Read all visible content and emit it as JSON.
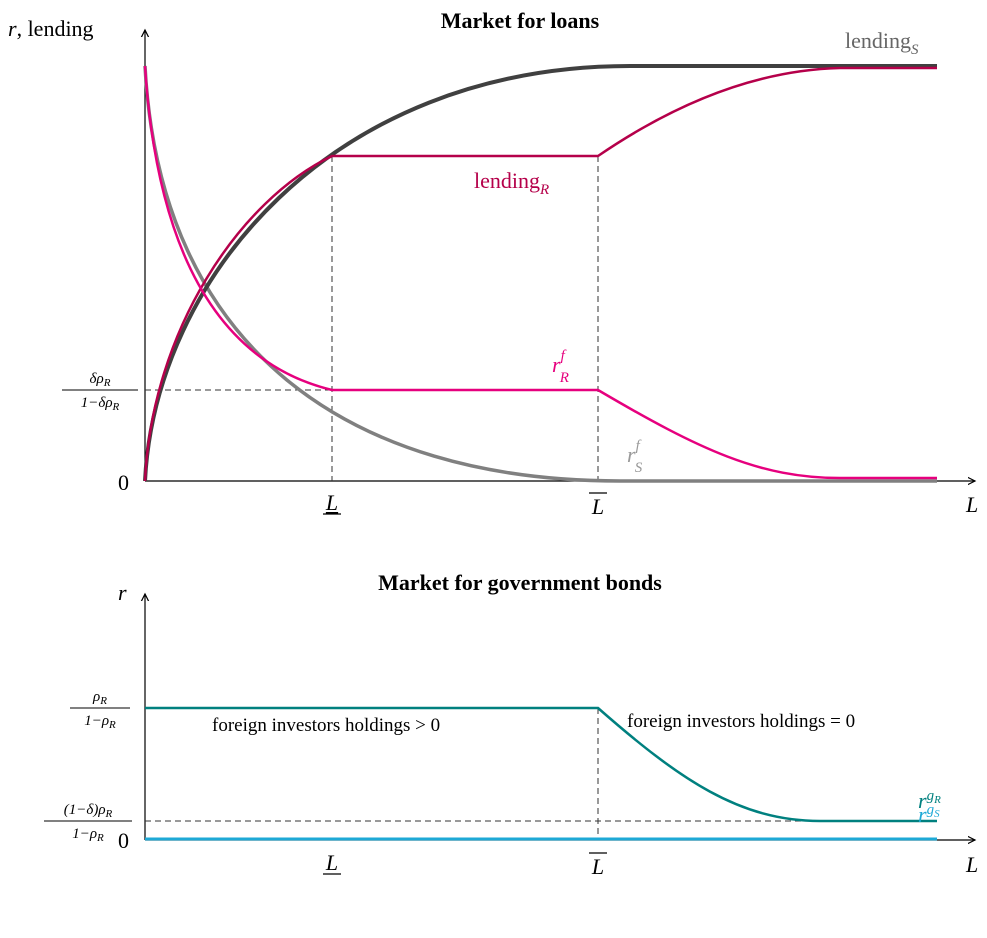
{
  "top": {
    "title": "Market for loans",
    "y_axis_label": {
      "var": "r",
      "rest": ", lending"
    },
    "x_axis_label": "L",
    "y_zero": "0",
    "y_tick": {
      "numerator": "δρ",
      "numerator_sub": "R",
      "denominator": "1−δρ",
      "denominator_sub": "R"
    },
    "x_ticks": [
      "L",
      "L"
    ],
    "curves": {
      "lending_S": {
        "text": "lending",
        "sub": "S"
      },
      "lending_R": {
        "text": "lending",
        "sub": "R"
      },
      "r_R": {
        "text": "r",
        "sup": "f",
        "sub": "R"
      },
      "r_S": {
        "text": "r",
        "sup": "f",
        "sub": "S"
      }
    }
  },
  "bottom": {
    "title": "Market for government bonds",
    "y_axis_label": "r",
    "x_axis_label": "L",
    "y_zero": "0",
    "y_tick_high": {
      "numerator": "ρ",
      "numerator_sub": "R",
      "denominator": "1−ρ",
      "denominator_sub": "R"
    },
    "y_tick_low": {
      "numerator": "(1−δ)ρ",
      "numerator_sub": "R",
      "denominator": "1−ρ",
      "denominator_sub": "R"
    },
    "x_ticks": [
      "L",
      "L"
    ],
    "region_left": "foreign investors holdings > 0",
    "region_right": "foreign investors holdings = 0",
    "curves": {
      "r_gR": {
        "text": "r",
        "sup": "g",
        "sup_sub": "R"
      },
      "r_gS": {
        "text": "r",
        "sup": "g",
        "sup_sub": "S"
      }
    }
  }
}
